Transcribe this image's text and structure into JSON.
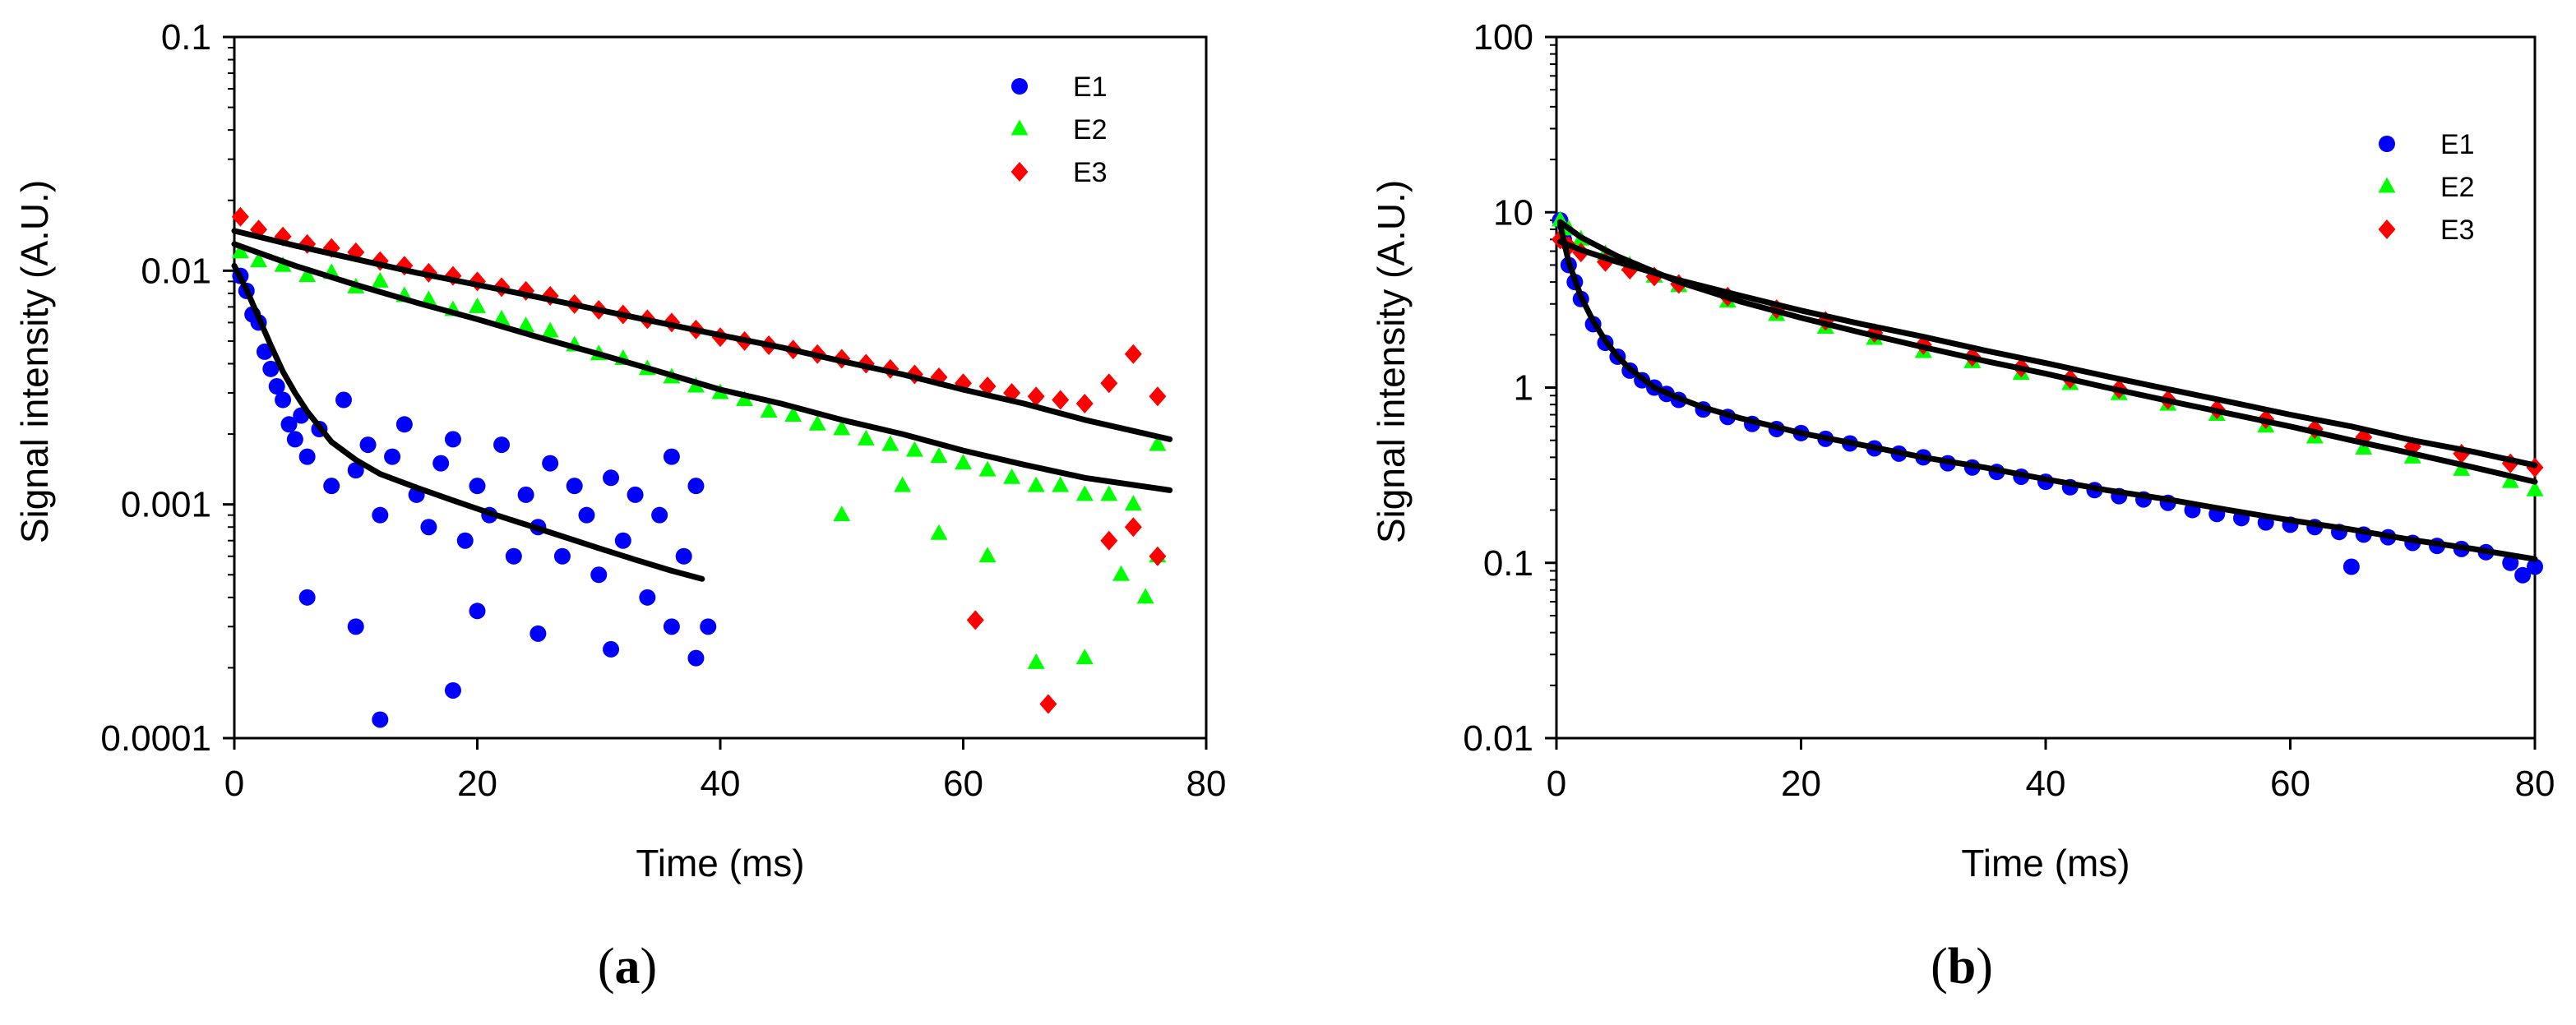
{
  "colors": {
    "E1": "#0000ff",
    "E2": "#00ff00",
    "E3": "#ff0000",
    "fit": "#000000"
  },
  "chart_data": [
    {
      "type": "scatter",
      "panel": "(a)",
      "panel_letter": "a",
      "xlabel": "Time (ms)",
      "ylabel": "Signal intensity (A.U.)",
      "xlim": [
        0,
        80
      ],
      "ylim": [
        0.0001,
        0.1
      ],
      "yscale": "log",
      "grid": false,
      "legend_position": "top-right",
      "xticks": [
        "0",
        "20",
        "40",
        "60",
        "80"
      ],
      "yticks": [
        "0.0001",
        "0.001",
        "0.01",
        "0.1"
      ],
      "series": [
        {
          "name": "E1",
          "marker": "circle",
          "color": "#0000ff",
          "x": [
            0.5,
            1,
            1.5,
            2,
            2.5,
            3,
            3.5,
            4,
            4.5,
            5,
            5.5,
            6,
            7,
            8,
            9,
            10,
            11,
            12,
            13,
            14,
            15,
            16,
            17,
            18,
            19,
            20,
            21,
            22,
            23,
            24,
            25,
            26,
            27,
            28,
            29,
            30,
            31,
            32,
            33,
            34,
            35,
            36,
            37,
            38,
            39,
            6,
            10,
            12,
            18,
            20,
            25,
            31,
            36,
            38
          ],
          "y": [
            0.0095,
            0.0082,
            0.0065,
            0.006,
            0.0045,
            0.0038,
            0.0032,
            0.0028,
            0.0022,
            0.0019,
            0.0024,
            0.0016,
            0.0021,
            0.0012,
            0.0028,
            0.0014,
            0.0018,
            0.0009,
            0.0016,
            0.0022,
            0.0011,
            0.0008,
            0.0015,
            0.0019,
            0.0007,
            0.0012,
            0.0009,
            0.0018,
            0.0006,
            0.0011,
            0.0008,
            0.0015,
            0.0006,
            0.0012,
            0.0009,
            0.0005,
            0.0013,
            0.0007,
            0.0011,
            0.0004,
            0.0009,
            0.0016,
            0.0006,
            0.0012,
            0.0003,
            0.0004,
            0.0003,
            0.00012,
            0.00016,
            0.00035,
            0.00028,
            0.00024,
            0.0003,
            0.00022
          ]
        },
        {
          "name": "E2",
          "marker": "triangle",
          "color": "#00ff00",
          "x": [
            0.5,
            2,
            4,
            6,
            8,
            10,
            12,
            14,
            16,
            18,
            20,
            22,
            24,
            26,
            28,
            30,
            32,
            34,
            36,
            38,
            40,
            42,
            44,
            46,
            48,
            50,
            52,
            54,
            56,
            58,
            60,
            62,
            64,
            66,
            68,
            70,
            72,
            74,
            76,
            50,
            55,
            58,
            62,
            66,
            70,
            73,
            75,
            76
          ],
          "y": [
            0.012,
            0.011,
            0.0105,
            0.0095,
            0.0098,
            0.0085,
            0.009,
            0.0078,
            0.0075,
            0.0068,
            0.007,
            0.0062,
            0.0058,
            0.0055,
            0.0048,
            0.0044,
            0.0042,
            0.0038,
            0.0035,
            0.0032,
            0.003,
            0.0028,
            0.0025,
            0.0024,
            0.0022,
            0.0021,
            0.0019,
            0.0018,
            0.0017,
            0.0016,
            0.0015,
            0.0014,
            0.0013,
            0.0012,
            0.0012,
            0.0011,
            0.0011,
            0.001,
            0.0018,
            0.0009,
            0.0012,
            0.00075,
            0.0006,
            0.00021,
            0.00022,
            0.0005,
            0.0004,
            0.0006
          ]
        },
        {
          "name": "E3",
          "marker": "diamond",
          "color": "#ff0000",
          "x": [
            0.5,
            2,
            4,
            6,
            8,
            10,
            12,
            14,
            16,
            18,
            20,
            22,
            24,
            26,
            28,
            30,
            32,
            34,
            36,
            38,
            40,
            42,
            44,
            46,
            48,
            50,
            52,
            54,
            56,
            58,
            60,
            62,
            64,
            66,
            68,
            70,
            72,
            74,
            76,
            61,
            67,
            72,
            74,
            76
          ],
          "y": [
            0.017,
            0.015,
            0.014,
            0.013,
            0.0125,
            0.012,
            0.011,
            0.0105,
            0.0098,
            0.0095,
            0.009,
            0.0085,
            0.0082,
            0.0078,
            0.0072,
            0.0068,
            0.0065,
            0.0062,
            0.006,
            0.0056,
            0.0052,
            0.005,
            0.0048,
            0.0046,
            0.0044,
            0.0042,
            0.004,
            0.0038,
            0.0036,
            0.0035,
            0.0033,
            0.0032,
            0.003,
            0.0029,
            0.0028,
            0.0027,
            0.0033,
            0.0044,
            0.0029,
            0.00032,
            0.00014,
            0.0007,
            0.0008,
            0.0006
          ]
        }
      ],
      "fits": [
        {
          "series": "E1",
          "x": [
            0,
            1,
            2,
            3,
            4,
            5,
            6,
            8,
            10,
            12,
            15,
            18,
            21,
            24,
            27,
            30,
            33,
            36,
            38.5
          ],
          "y": [
            0.0105,
            0.0083,
            0.0063,
            0.0048,
            0.0037,
            0.003,
            0.0025,
            0.00185,
            0.00155,
            0.00135,
            0.00118,
            0.00104,
            0.00092,
            0.00082,
            0.00073,
            0.00065,
            0.00058,
            0.00052,
            0.00048
          ]
        },
        {
          "series": "E2",
          "x": [
            0,
            5,
            10,
            15,
            20,
            25,
            30,
            35,
            40,
            45,
            50,
            55,
            60,
            65,
            70,
            77
          ],
          "y": [
            0.013,
            0.0105,
            0.0087,
            0.0073,
            0.0062,
            0.0052,
            0.0044,
            0.0037,
            0.0031,
            0.0027,
            0.0023,
            0.002,
            0.0017,
            0.00148,
            0.0013,
            0.00115
          ]
        },
        {
          "series": "E3",
          "x": [
            0,
            5,
            10,
            15,
            20,
            25,
            30,
            35,
            40,
            45,
            50,
            55,
            60,
            65,
            70,
            77
          ],
          "y": [
            0.0148,
            0.0128,
            0.0112,
            0.0098,
            0.0087,
            0.0077,
            0.0068,
            0.006,
            0.0053,
            0.0047,
            0.0041,
            0.0036,
            0.0031,
            0.0027,
            0.0023,
            0.0019
          ]
        }
      ]
    },
    {
      "type": "scatter",
      "panel": "(b)",
      "panel_letter": "b",
      "xlabel": "Time (ms)",
      "ylabel": "Signal intensity (A.U.)",
      "xlim": [
        0,
        80
      ],
      "ylim": [
        0.01,
        100
      ],
      "yscale": "log",
      "grid": false,
      "legend_position": "top-right",
      "xticks": [
        "0",
        "20",
        "40",
        "60",
        "80"
      ],
      "yticks": [
        "0.01",
        "0.1",
        "1",
        "10",
        "100"
      ],
      "series": [
        {
          "name": "E1",
          "marker": "circle",
          "color": "#0000ff",
          "x": [
            0.3,
            0.6,
            1,
            1.5,
            2,
            3,
            4,
            5,
            6,
            7,
            8,
            9,
            10,
            12,
            14,
            16,
            18,
            20,
            22,
            24,
            26,
            28,
            30,
            32,
            34,
            36,
            38,
            40,
            42,
            44,
            46,
            48,
            50,
            52,
            54,
            56,
            58,
            60,
            62,
            64,
            65,
            66,
            68,
            70,
            72,
            74,
            76,
            78,
            79,
            80
          ],
          "y": [
            9.0,
            7.0,
            5.0,
            4.0,
            3.2,
            2.3,
            1.8,
            1.5,
            1.25,
            1.1,
            1.0,
            0.92,
            0.85,
            0.75,
            0.68,
            0.62,
            0.58,
            0.55,
            0.51,
            0.48,
            0.45,
            0.42,
            0.4,
            0.37,
            0.35,
            0.33,
            0.31,
            0.29,
            0.27,
            0.26,
            0.24,
            0.23,
            0.22,
            0.2,
            0.19,
            0.18,
            0.17,
            0.165,
            0.16,
            0.15,
            0.095,
            0.145,
            0.14,
            0.13,
            0.125,
            0.12,
            0.115,
            0.1,
            0.085,
            0.095
          ]
        },
        {
          "name": "E2",
          "marker": "triangle",
          "color": "#00ff00",
          "x": [
            0.3,
            1,
            2,
            4,
            6,
            8,
            10,
            14,
            18,
            22,
            26,
            30,
            34,
            38,
            42,
            46,
            50,
            54,
            58,
            62,
            66,
            70,
            74,
            78,
            80
          ],
          "y": [
            9.0,
            8.0,
            7.0,
            5.8,
            5.0,
            4.3,
            3.8,
            3.1,
            2.6,
            2.2,
            1.9,
            1.6,
            1.4,
            1.2,
            1.05,
            0.92,
            0.8,
            0.7,
            0.6,
            0.52,
            0.45,
            0.4,
            0.34,
            0.29,
            0.26
          ]
        },
        {
          "name": "E3",
          "marker": "diamond",
          "color": "#ff0000",
          "x": [
            0.3,
            1,
            2,
            4,
            6,
            8,
            10,
            14,
            18,
            22,
            26,
            30,
            34,
            38,
            42,
            46,
            50,
            54,
            58,
            62,
            66,
            70,
            74,
            78,
            80
          ],
          "y": [
            7.0,
            6.4,
            5.9,
            5.2,
            4.7,
            4.3,
            3.9,
            3.3,
            2.8,
            2.4,
            2.05,
            1.75,
            1.5,
            1.3,
            1.12,
            0.98,
            0.85,
            0.75,
            0.66,
            0.58,
            0.52,
            0.46,
            0.42,
            0.37,
            0.35
          ]
        }
      ],
      "fits": [
        {
          "series": "E1",
          "x": [
            0.3,
            1,
            2,
            3,
            4,
            5,
            6,
            8,
            10,
            12,
            15,
            20,
            25,
            30,
            35,
            40,
            45,
            50,
            55,
            60,
            65,
            70,
            75,
            80
          ],
          "y": [
            8.5,
            5.2,
            3.3,
            2.4,
            1.85,
            1.5,
            1.28,
            1.0,
            0.87,
            0.77,
            0.67,
            0.55,
            0.47,
            0.4,
            0.35,
            0.3,
            0.26,
            0.23,
            0.2,
            0.175,
            0.155,
            0.135,
            0.12,
            0.105
          ]
        },
        {
          "series": "E2",
          "x": [
            0.3,
            2,
            5,
            10,
            15,
            20,
            25,
            30,
            35,
            40,
            45,
            50,
            55,
            60,
            65,
            70,
            75,
            80
          ],
          "y": [
            8.8,
            7.2,
            5.6,
            4.0,
            3.1,
            2.5,
            2.05,
            1.7,
            1.42,
            1.2,
            1.0,
            0.84,
            0.71,
            0.6,
            0.5,
            0.42,
            0.35,
            0.29
          ]
        },
        {
          "series": "E3",
          "x": [
            0.3,
            2,
            5,
            10,
            15,
            20,
            25,
            30,
            35,
            40,
            45,
            50,
            55,
            60,
            65,
            70,
            75,
            80
          ],
          "y": [
            6.8,
            6.1,
            5.2,
            4.1,
            3.35,
            2.75,
            2.3,
            1.95,
            1.63,
            1.38,
            1.16,
            0.98,
            0.83,
            0.7,
            0.6,
            0.5,
            0.43,
            0.36
          ]
        }
      ]
    }
  ]
}
